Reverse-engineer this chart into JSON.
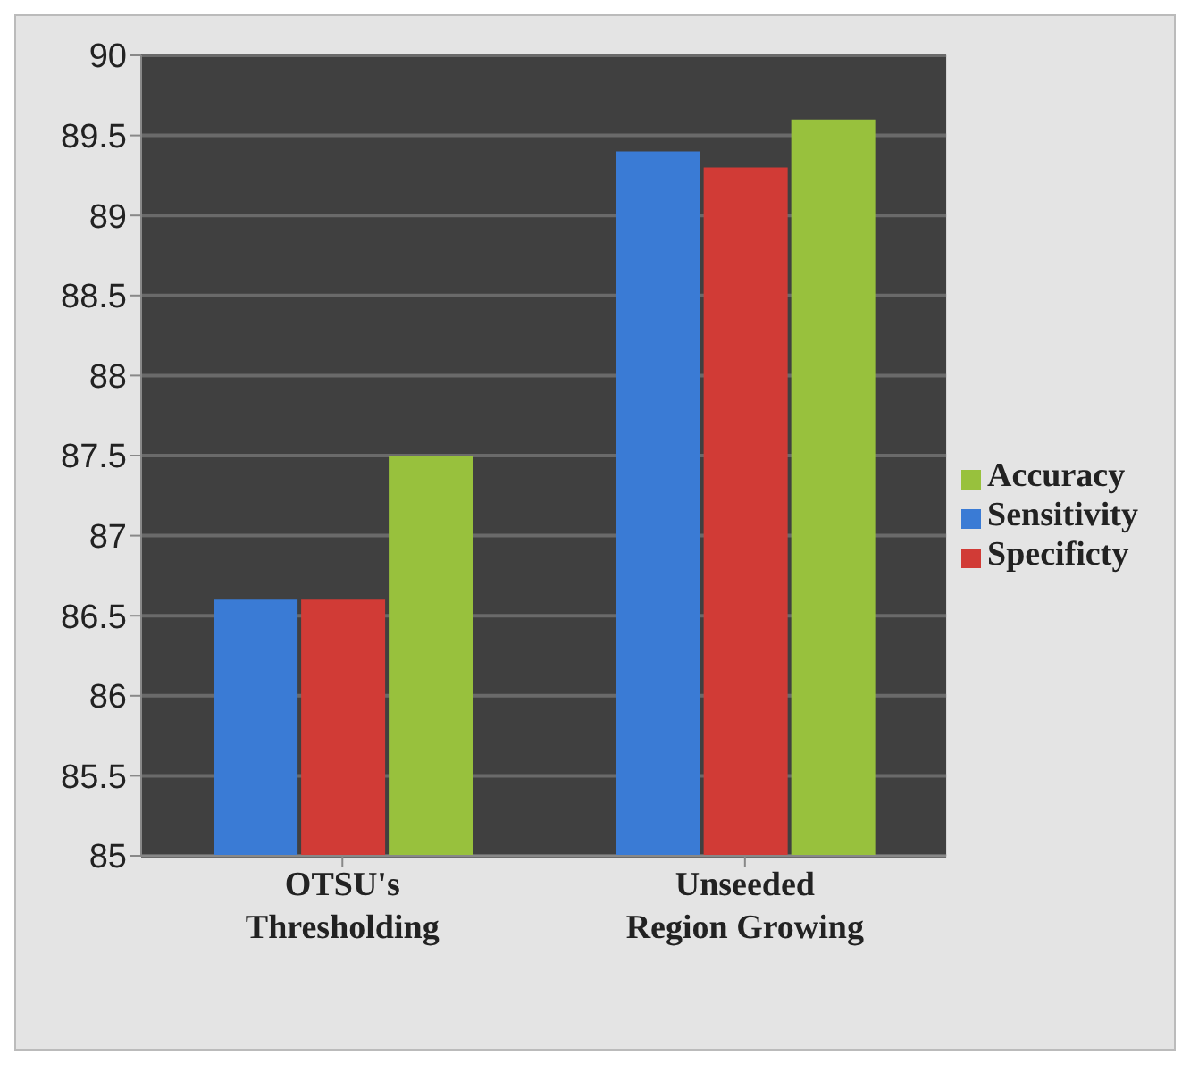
{
  "chart_data": {
    "type": "bar",
    "categories": [
      "OTSU's Thresholding",
      "Unseeded Region Growing"
    ],
    "series": [
      {
        "name": "Sensitivity",
        "color": "#3a7bd5",
        "values": [
          86.6,
          89.4
        ]
      },
      {
        "name": "Specificty",
        "color": "#d13b36",
        "values": [
          86.6,
          89.3
        ]
      },
      {
        "name": "Accuracy",
        "color": "#98c13d",
        "values": [
          87.5,
          89.6
        ]
      }
    ],
    "ylim": [
      85,
      90
    ],
    "yticks": [
      85,
      85.5,
      86,
      86.5,
      87,
      87.5,
      88,
      88.5,
      89,
      89.5,
      90
    ],
    "grid": "y",
    "legend": "right"
  }
}
